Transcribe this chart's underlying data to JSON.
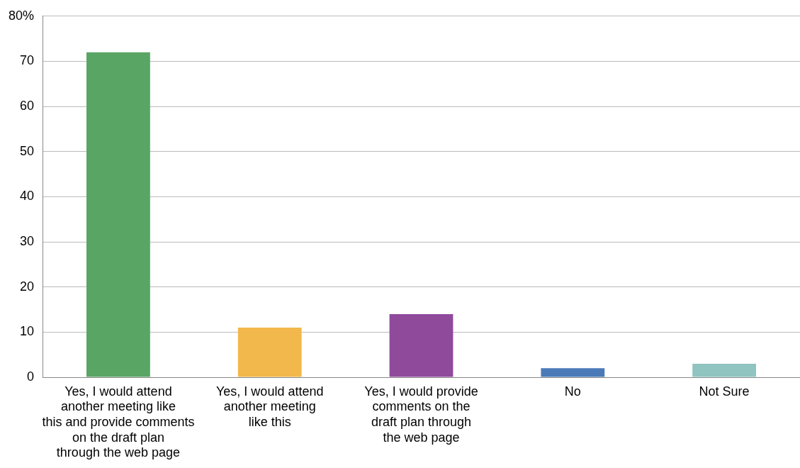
{
  "chart_data": {
    "type": "bar",
    "categories": [
      "Yes, I would attend\nanother meeting like\nthis and provide comments\non the draft plan\nthrough the web page",
      "Yes, I would attend\nanother meeting\nlike this",
      "Yes, I would provide\ncomments on the\ndraft plan through\nthe web page",
      "No",
      "Not Sure"
    ],
    "values": [
      72,
      11,
      14,
      2,
      3
    ],
    "colors": [
      "#58a564",
      "#f2b84b",
      "#8f4a9c",
      "#4a7ab8",
      "#8fc4c0"
    ],
    "ylim": [
      0,
      80
    ],
    "yticks": [
      0,
      10,
      20,
      30,
      40,
      50,
      60,
      70,
      {
        "value": 80,
        "label": "80%"
      }
    ],
    "grid": "y"
  }
}
